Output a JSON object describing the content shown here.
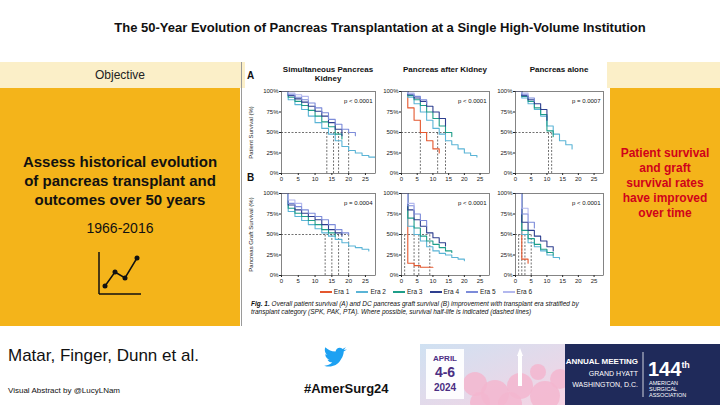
{
  "header": {
    "title": "The 50-Year Evolution of Pancreas Transplantation at a Single High-Volume Institution"
  },
  "objective": {
    "heading": "Objective",
    "text": "Assess historical evolution of pancreas transplant and outcomes over 50 years",
    "years": "1966-2016"
  },
  "conclusion": "Patient survival and graft survival rates have improved over time",
  "figure_caption": {
    "label": "Fig. 1.",
    "text": "Overall patient survival (A) and DC pancreas graft survival (B) improvement with transplant era stratified by transplant category (SPK, PAK, PTA). Where possible, survival half-life is indicated (dashed lines)"
  },
  "authors": "Matar, Finger, Dunn et al.",
  "credit": "Visual Abstract by @LucyLNam",
  "hashtag": "#AmerSurg24",
  "banner": {
    "month": "APRIL",
    "days": "4-6",
    "year": "2024",
    "meeting": "ANNUAL MEETING",
    "venue": "GRAND HYATT",
    "city": "WASHINGTON, D.C.",
    "edition": "144",
    "edition_suffix": "th",
    "org": "AMERICAN SURGICAL ASSOCIATION"
  },
  "chart_data": [
    {
      "type": "line",
      "title": "Simultaneous Pancreas Kidney",
      "panel": "A",
      "ylabel": "Patient Survival (%)",
      "annotation": "p < 0.0001",
      "line_style": "step",
      "legend": "bottom",
      "half_life_level": 50,
      "x": [
        0,
        2,
        4,
        6,
        8,
        10,
        12,
        14,
        16,
        18,
        20,
        22,
        24,
        26,
        28
      ],
      "xlim": [
        0,
        28
      ],
      "xticks": [
        0,
        5,
        10,
        15,
        20,
        25
      ],
      "ylim": [
        0,
        100
      ],
      "yticks": [
        {
          "value": 0,
          "label": "0%"
        },
        {
          "value": 25,
          "label": "25%"
        },
        {
          "value": 50,
          "label": "50%"
        },
        {
          "value": 75,
          "label": "75%"
        },
        {
          "value": 100,
          "label": "100%"
        }
      ],
      "series": [
        {
          "name": "Era 2",
          "color": "#5AB4D6",
          "values": [
            100,
            90,
            84,
            78,
            70,
            62,
            55,
            48,
            40,
            33,
            28,
            25,
            22,
            20,
            18
          ],
          "half_life": 13.5
        },
        {
          "name": "Era 3",
          "color": "#1F9E89",
          "values": [
            100,
            93,
            88,
            83,
            77,
            70,
            63,
            57,
            48,
            42,
            null,
            null,
            null,
            null,
            null
          ],
          "half_life": 15.5
        },
        {
          "name": "Era 4",
          "color": "#2E3F8F",
          "values": [
            100,
            95,
            91,
            87,
            82,
            76,
            70,
            62,
            54,
            46,
            null,
            null,
            null,
            null,
            null
          ],
          "half_life": 17
        },
        {
          "name": "Era 5",
          "color": "#7C8BD9",
          "values": [
            100,
            96,
            93,
            90,
            86,
            80,
            74,
            66,
            60,
            54,
            50,
            46,
            null,
            null,
            null
          ],
          "half_life": 20
        },
        {
          "name": "Era 6",
          "color": "#B3B8EE",
          "values": [
            100,
            98,
            96,
            94,
            90,
            null,
            null,
            null,
            null,
            null,
            null,
            null,
            null,
            null,
            null
          ]
        }
      ]
    },
    {
      "type": "line",
      "title": "Pancreas after Kidney",
      "annotation": "p < 0.0001",
      "line_style": "step",
      "legend": "bottom",
      "half_life_level": 50,
      "x": [
        0,
        2,
        4,
        6,
        8,
        10,
        12,
        14,
        16,
        18,
        20,
        22,
        24,
        26,
        28
      ],
      "xlim": [
        0,
        28
      ],
      "xticks": [
        0,
        5,
        10,
        15,
        20,
        25
      ],
      "ylim": [
        0,
        100
      ],
      "yticks": [
        {
          "value": 0,
          "label": "0%"
        },
        {
          "value": 25,
          "label": "25%"
        },
        {
          "value": 50,
          "label": "50%"
        },
        {
          "value": 75,
          "label": "75%"
        },
        {
          "value": 100,
          "label": "100%"
        }
      ],
      "series": [
        {
          "name": "Era 1",
          "color": "#E4572E",
          "values": [
            100,
            80,
            65,
            50,
            40,
            30,
            25,
            null,
            null,
            null,
            null,
            null,
            null,
            null,
            null
          ],
          "half_life": 6
        },
        {
          "name": "Era 2",
          "color": "#5AB4D6",
          "values": [
            100,
            93,
            85,
            75,
            65,
            55,
            48,
            40,
            35,
            30,
            25,
            22,
            20,
            null,
            null
          ],
          "half_life": 11.5
        },
        {
          "name": "Era 3",
          "color": "#1F9E89",
          "values": [
            100,
            95,
            90,
            83,
            75,
            67,
            58,
            50,
            45,
            null,
            null,
            null,
            null,
            null,
            null
          ],
          "half_life": 14
        },
        {
          "name": "Era 4",
          "color": "#2E3F8F",
          "values": [
            100,
            96,
            92,
            88,
            82,
            75,
            67,
            58,
            null,
            null,
            null,
            null,
            null,
            null,
            null
          ]
        },
        {
          "name": "Era 5",
          "color": "#7C8BD9",
          "values": [
            100,
            97,
            94,
            90,
            85,
            null,
            null,
            null,
            null,
            null,
            null,
            null,
            null,
            null,
            null
          ]
        },
        {
          "name": "Era 6",
          "color": "#B3B8EE",
          "values": [
            100,
            98,
            96,
            null,
            null,
            null,
            null,
            null,
            null,
            null,
            null,
            null,
            null,
            null,
            null
          ]
        }
      ]
    },
    {
      "type": "line",
      "title": "Pancreas alone",
      "annotation": "p = 0.0007",
      "line_style": "step",
      "legend": "bottom",
      "half_life_level": 50,
      "x": [
        0,
        2,
        4,
        6,
        8,
        10,
        12,
        14,
        16,
        18,
        20,
        22,
        24,
        26,
        28
      ],
      "xlim": [
        0,
        28
      ],
      "xticks": [
        0,
        5,
        10,
        15,
        20,
        25
      ],
      "ylim": [
        0,
        100
      ],
      "yticks": [
        {
          "value": 0,
          "label": "0%"
        },
        {
          "value": 25,
          "label": "25%"
        },
        {
          "value": 50,
          "label": "50%"
        },
        {
          "value": 75,
          "label": "75%"
        },
        {
          "value": 100,
          "label": "100%"
        }
      ],
      "series": [
        {
          "name": "Era 2",
          "color": "#5AB4D6",
          "values": [
            100,
            92,
            85,
            78,
            70,
            58,
            48,
            40,
            35,
            30,
            null,
            null,
            null,
            null,
            null
          ],
          "half_life": 11.5
        },
        {
          "name": "Era 3",
          "color": "#1F9E89",
          "values": [
            100,
            94,
            88,
            80,
            72,
            52,
            45,
            null,
            null,
            null,
            null,
            null,
            null,
            null,
            null
          ],
          "half_life": 10.5
        },
        {
          "name": "Era 4",
          "color": "#2E3F8F",
          "values": [
            100,
            95,
            90,
            85,
            78,
            65,
            null,
            null,
            null,
            null,
            null,
            null,
            null,
            null,
            null
          ]
        },
        {
          "name": "Era 5",
          "color": "#7C8BD9",
          "values": [
            100,
            96,
            92,
            88,
            null,
            null,
            null,
            null,
            null,
            null,
            null,
            null,
            null,
            null,
            null
          ]
        },
        {
          "name": "Era 6",
          "color": "#B3B8EE",
          "values": [
            100,
            98,
            95,
            null,
            null,
            null,
            null,
            null,
            null,
            null,
            null,
            null,
            null,
            null,
            null
          ]
        }
      ]
    },
    {
      "type": "line",
      "panel": "B",
      "ylabel": "Pancreas Graft Survival (%)",
      "annotation": "p = 0.0004",
      "line_style": "step",
      "legend": "bottom",
      "half_life_level": 50,
      "x": [
        0,
        2,
        4,
        6,
        8,
        10,
        12,
        14,
        16,
        18,
        20,
        22,
        24,
        26,
        28
      ],
      "xlim": [
        0,
        28
      ],
      "xticks": [
        0,
        5,
        10,
        15,
        20,
        25
      ],
      "ylim": [
        0,
        100
      ],
      "yticks": [
        {
          "value": 0,
          "label": "0%"
        },
        {
          "value": 25,
          "label": "25%"
        },
        {
          "value": 50,
          "label": "50%"
        },
        {
          "value": 75,
          "label": "75%"
        },
        {
          "value": 100,
          "label": "100%"
        }
      ],
      "series": [
        {
          "name": "Era 2",
          "color": "#5AB4D6",
          "values": [
            100,
            78,
            72,
            67,
            62,
            57,
            52,
            48,
            44,
            40,
            36,
            34,
            32,
            30,
            null
          ],
          "half_life": 13
        },
        {
          "name": "Era 3",
          "color": "#1F9E89",
          "values": [
            100,
            82,
            76,
            72,
            67,
            62,
            56,
            52,
            48,
            null,
            null,
            null,
            null,
            null,
            null
          ],
          "half_life": 15
        },
        {
          "name": "Era 4",
          "color": "#2E3F8F",
          "values": [
            100,
            86,
            80,
            76,
            72,
            68,
            62,
            56,
            52,
            48,
            null,
            null,
            null,
            null,
            null
          ],
          "half_life": 17
        },
        {
          "name": "Era 5",
          "color": "#7C8BD9",
          "values": [
            100,
            88,
            84,
            80,
            76,
            72,
            68,
            62,
            56,
            52,
            50,
            null,
            null,
            null,
            null
          ],
          "half_life": 20
        },
        {
          "name": "Era 6",
          "color": "#B3B8EE",
          "values": [
            100,
            92,
            88,
            85,
            null,
            null,
            null,
            null,
            null,
            null,
            null,
            null,
            null,
            null,
            null
          ]
        }
      ]
    },
    {
      "type": "line",
      "annotation": "p < 0.0001",
      "line_style": "step",
      "legend": "bottom",
      "half_life_level": 50,
      "x": [
        0,
        2,
        4,
        6,
        8,
        10,
        12,
        14,
        16,
        18,
        20,
        22,
        24,
        26,
        28
      ],
      "xlim": [
        0,
        28
      ],
      "xticks": [
        0,
        5,
        10,
        15,
        20,
        25
      ],
      "ylim": [
        0,
        100
      ],
      "yticks": [
        {
          "value": 0,
          "label": "0%"
        },
        {
          "value": 25,
          "label": "25%"
        },
        {
          "value": 50,
          "label": "50%"
        },
        {
          "value": 75,
          "label": "75%"
        },
        {
          "value": 100,
          "label": "100%"
        }
      ],
      "series": [
        {
          "name": "Era 1",
          "color": "#E4572E",
          "values": [
            100,
            15,
            12,
            10,
            10,
            10,
            null,
            null,
            null,
            null,
            null,
            null,
            null,
            null,
            null
          ],
          "half_life": 1
        },
        {
          "name": "Era 2",
          "color": "#5AB4D6",
          "values": [
            100,
            60,
            50,
            42,
            35,
            30,
            27,
            25,
            22,
            20,
            18,
            null,
            null,
            null,
            null
          ],
          "half_life": 4
        },
        {
          "name": "Era 3",
          "color": "#1F9E89",
          "values": [
            100,
            70,
            58,
            48,
            42,
            38,
            34,
            30,
            28,
            null,
            null,
            null,
            null,
            null,
            null
          ],
          "half_life": 5.5
        },
        {
          "name": "Era 4",
          "color": "#2E3F8F",
          "values": [
            100,
            80,
            68,
            60,
            52,
            46,
            40,
            36,
            null,
            null,
            null,
            null,
            null,
            null,
            null
          ],
          "half_life": 9
        },
        {
          "name": "Era 5",
          "color": "#7C8BD9",
          "values": [
            100,
            85,
            75,
            67,
            60,
            null,
            null,
            null,
            null,
            null,
            null,
            null,
            null,
            null,
            null
          ]
        },
        {
          "name": "Era 6",
          "color": "#B3B8EE",
          "values": [
            100,
            88,
            80,
            null,
            null,
            null,
            null,
            null,
            null,
            null,
            null,
            null,
            null,
            null,
            null
          ]
        }
      ]
    },
    {
      "type": "line",
      "annotation": "p < 0.0001",
      "line_style": "step",
      "legend": "bottom",
      "half_life_level": 50,
      "x": [
        0,
        2,
        4,
        6,
        8,
        10,
        12,
        14,
        16,
        18,
        20,
        22,
        24,
        26,
        28
      ],
      "xlim": [
        0,
        28
      ],
      "xticks": [
        0,
        5,
        10,
        15,
        20,
        25
      ],
      "ylim": [
        0,
        100
      ],
      "yticks": [
        {
          "value": 0,
          "label": "0%"
        },
        {
          "value": 25,
          "label": "25%"
        },
        {
          "value": 50,
          "label": "50%"
        },
        {
          "value": 75,
          "label": "75%"
        },
        {
          "value": 100,
          "label": "100%"
        }
      ],
      "series": [
        {
          "name": "Era 1",
          "color": "#E4572E",
          "values": [
            100,
            20,
            15,
            null,
            null,
            null,
            null,
            null,
            null,
            null,
            null,
            null,
            null,
            null,
            null
          ],
          "half_life": 1
        },
        {
          "name": "Era 2",
          "color": "#5AB4D6",
          "values": [
            100,
            50,
            40,
            35,
            30,
            25,
            22,
            20,
            null,
            null,
            null,
            null,
            null,
            null,
            null
          ],
          "half_life": 2
        },
        {
          "name": "Era 3",
          "color": "#1F9E89",
          "values": [
            100,
            55,
            45,
            38,
            32,
            28,
            25,
            null,
            null,
            null,
            null,
            null,
            null,
            null,
            null
          ],
          "half_life": 3
        },
        {
          "name": "Era 4",
          "color": "#2E3F8F",
          "values": [
            100,
            65,
            55,
            48,
            42,
            35,
            30,
            null,
            null,
            null,
            null,
            null,
            null,
            null,
            null
          ],
          "half_life": 5
        },
        {
          "name": "Era 5",
          "color": "#7C8BD9",
          "values": [
            100,
            75,
            65,
            58,
            null,
            null,
            null,
            null,
            null,
            null,
            null,
            null,
            null,
            null,
            null
          ]
        },
        {
          "name": "Era 6",
          "color": "#B3B8EE",
          "values": [
            100,
            82,
            75,
            null,
            null,
            null,
            null,
            null,
            null,
            null,
            null,
            null,
            null,
            null,
            null
          ]
        }
      ]
    }
  ]
}
